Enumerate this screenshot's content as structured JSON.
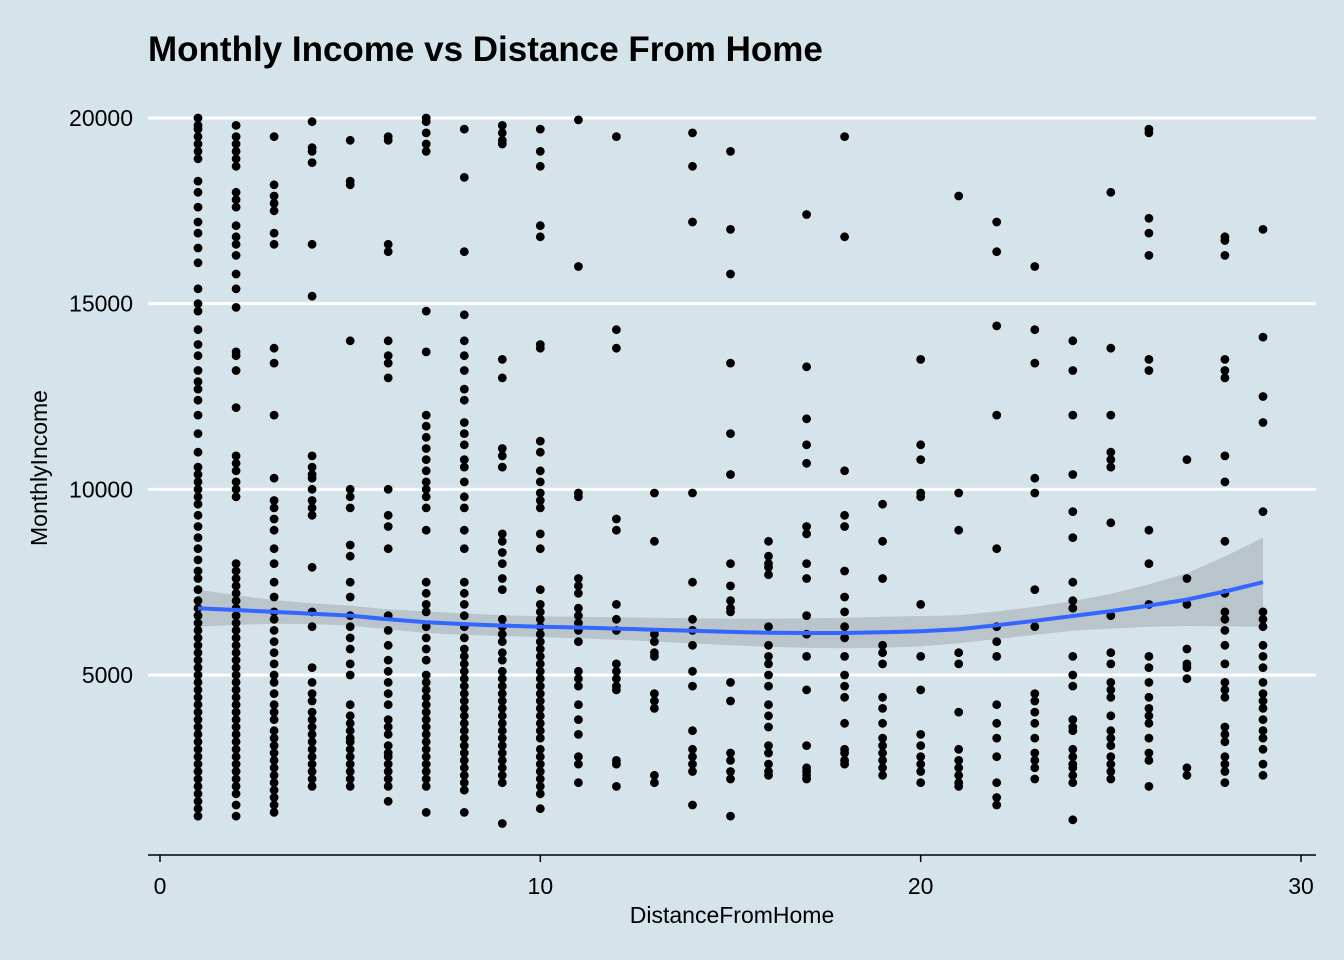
{
  "chart_data": {
    "type": "scatter",
    "title": "Monthly Income vs Distance From Home",
    "xlabel": "DistanceFromHome",
    "ylabel": "MonthlyIncome",
    "xlim": [
      -0.2,
      30.4
    ],
    "ylim": [
      1000,
      20000
    ],
    "x_ticks": [
      0,
      10,
      20,
      30
    ],
    "y_ticks": [
      5000,
      10000,
      15000,
      20000
    ],
    "grid": "horizontal major lines only",
    "colors": {
      "background": "#d5e4eb",
      "grid": "#ffffff",
      "points": "#000000",
      "smooth_line": "#3366ff",
      "confidence_band": "#b5bfc6"
    },
    "points": {
      "1": [
        19999,
        19800,
        19700,
        19500,
        19300,
        19100,
        18900,
        18300,
        18000,
        17600,
        17200,
        16900,
        16500,
        16100,
        15400,
        15000,
        14800,
        14300,
        13900,
        13600,
        13200,
        12900,
        12700,
        12400,
        12000,
        11500,
        11000,
        10600,
        10400,
        10200,
        10000,
        9800,
        9600,
        9300,
        9000,
        8700,
        8400,
        8100,
        7800,
        7600,
        7300,
        7000,
        6800,
        6600,
        6400,
        6200,
        6000,
        5800,
        5600,
        5400,
        5200,
        5000,
        4800,
        4600,
        4400,
        4200,
        4000,
        3800,
        3600,
        3400,
        3200,
        3000,
        2800,
        2600,
        2400,
        2200,
        2000,
        1800,
        1600,
        1400,
        1200
      ],
      "2": [
        19800,
        19500,
        19300,
        19100,
        18900,
        18700,
        18000,
        17800,
        17600,
        17100,
        16800,
        16600,
        16300,
        15800,
        15400,
        14900,
        13700,
        13600,
        13200,
        12200,
        10900,
        10700,
        10500,
        10200,
        10000,
        9800,
        8000,
        7800,
        7600,
        7400,
        7200,
        7000,
        6800,
        6600,
        6400,
        6200,
        6000,
        5800,
        5600,
        5400,
        5200,
        5000,
        4800,
        4600,
        4400,
        4200,
        4000,
        3800,
        3600,
        3400,
        3200,
        3000,
        2800,
        2600,
        2400,
        2200,
        2000,
        1800,
        1500,
        1200
      ],
      "3": [
        19500,
        18200,
        17900,
        17700,
        17500,
        16900,
        16600,
        13800,
        13400,
        12000,
        10300,
        9700,
        9500,
        9200,
        8900,
        8400,
        8000,
        7500,
        7100,
        6700,
        6500,
        6200,
        5900,
        5600,
        5300,
        5000,
        4800,
        4500,
        4200,
        4000,
        3800,
        3500,
        3300,
        3100,
        2900,
        2700,
        2500,
        2300,
        2100,
        1900,
        1700,
        1500,
        1300
      ],
      "4": [
        19900,
        19200,
        19100,
        18800,
        16600,
        15200,
        10900,
        10600,
        10400,
        10300,
        10000,
        9700,
        9500,
        9300,
        7900,
        6700,
        6300,
        5200,
        4800,
        4500,
        4300,
        4000,
        3800,
        3600,
        3400,
        3200,
        3000,
        2800,
        2600,
        2400,
        2200,
        2000
      ],
      "5": [
        19400,
        18300,
        18200,
        14000,
        10000,
        9800,
        9500,
        8500,
        8200,
        7500,
        7100,
        6600,
        6300,
        6000,
        5700,
        5300,
        5000,
        4200,
        3900,
        3700,
        3500,
        3300,
        3200,
        3000,
        2800,
        2600,
        2400,
        2200,
        2000
      ],
      "6": [
        19500,
        19400,
        16600,
        16400,
        14000,
        13600,
        13400,
        13000,
        10000,
        9300,
        9000,
        8400,
        6600,
        6200,
        5800,
        5400,
        5100,
        4800,
        4500,
        4200,
        3800,
        3600,
        3400,
        3100,
        2900,
        2800,
        2600,
        2400,
        2200,
        2000,
        1600
      ],
      "7": [
        19999,
        19900,
        19600,
        19300,
        19100,
        14800,
        13700,
        12000,
        11700,
        11400,
        11100,
        10800,
        10500,
        10200,
        10000,
        9800,
        9500,
        8900,
        7500,
        7200,
        6900,
        6700,
        6300,
        6000,
        5700,
        5400,
        5000,
        4800,
        4600,
        4400,
        4200,
        4000,
        3800,
        3600,
        3400,
        3200,
        3000,
        2800,
        2600,
        2400,
        2200,
        2000,
        1300
      ],
      "8": [
        19700,
        18400,
        16400,
        14700,
        14000,
        13600,
        13200,
        12700,
        12400,
        11800,
        11500,
        11200,
        10800,
        10600,
        10200,
        9800,
        9500,
        8900,
        8400,
        7500,
        7200,
        6900,
        6600,
        6300,
        6000,
        5700,
        5500,
        5300,
        5100,
        4900,
        4700,
        4500,
        4300,
        4100,
        3900,
        3700,
        3500,
        3300,
        3100,
        2900,
        2700,
        2500,
        2300,
        2100,
        1900,
        1300
      ],
      "9": [
        19800,
        19600,
        19400,
        19300,
        13500,
        13000,
        11100,
        10900,
        10600,
        8800,
        8600,
        8300,
        8000,
        7600,
        7300,
        6500,
        6300,
        6100,
        5900,
        5600,
        5400,
        5100,
        4900,
        4700,
        4500,
        4300,
        4100,
        3900,
        3700,
        3500,
        3300,
        3100,
        2900,
        2700,
        2500,
        2300,
        2100,
        1000
      ],
      "10": [
        19700,
        19100,
        18700,
        17100,
        16800,
        13900,
        13800,
        11300,
        11000,
        10500,
        10200,
        9900,
        9700,
        9500,
        8800,
        8400,
        7300,
        6900,
        6700,
        6500,
        6300,
        6100,
        5900,
        5700,
        5500,
        5300,
        5100,
        4900,
        4700,
        4500,
        4300,
        4100,
        3900,
        3700,
        3500,
        3300,
        3000,
        2800,
        2600,
        2400,
        2200,
        2000,
        1800,
        1400
      ],
      "11": [
        19950,
        16000,
        9900,
        9800,
        7600,
        7400,
        7200,
        6800,
        6600,
        6400,
        6200,
        5900,
        5100,
        4900,
        4700,
        4200,
        3800,
        3400,
        2800,
        2600,
        2100
      ],
      "12": [
        19500,
        14300,
        13800,
        9200,
        8900,
        6900,
        6500,
        6200,
        5300,
        5100,
        4900,
        4700,
        4600,
        2700,
        2600,
        2000
      ],
      "13": [
        9900,
        8600,
        6100,
        5900,
        5600,
        5500,
        4500,
        4300,
        4100,
        2300,
        2100
      ],
      "14": [
        19600,
        18700,
        17200,
        9900,
        7500,
        6500,
        6200,
        5800,
        5100,
        4700,
        3500,
        3000,
        2800,
        2600,
        2400,
        1500
      ],
      "15": [
        19100,
        17000,
        15800,
        13400,
        11500,
        10400,
        8000,
        7400,
        7000,
        6800,
        6700,
        4800,
        4300,
        2900,
        2700,
        2400,
        2200,
        1200
      ],
      "16": [
        8600,
        8200,
        8000,
        7900,
        7700,
        6300,
        5800,
        5500,
        5300,
        5000,
        4700,
        4200,
        3900,
        3600,
        3100,
        2900,
        2600,
        2400,
        2300
      ],
      "17": [
        17400,
        13300,
        11900,
        11200,
        10700,
        9000,
        8800,
        8000,
        7600,
        6600,
        6100,
        5500,
        4600,
        3100,
        2500,
        2400,
        2300,
        2200
      ],
      "18": [
        19500,
        16800,
        10500,
        9300,
        9000,
        7800,
        7100,
        6700,
        6300,
        6000,
        5500,
        5000,
        4700,
        4400,
        3700,
        3000,
        2900,
        2700,
        2600
      ],
      "19": [
        9600,
        8600,
        7600,
        5800,
        5600,
        5300,
        4400,
        4100,
        3700,
        3300,
        3100,
        2900,
        2700,
        2500,
        2300
      ],
      "20": [
        13500,
        11200,
        10800,
        9900,
        9800,
        6900,
        5500,
        4600,
        3400,
        3100,
        2800,
        2600,
        2400,
        2100
      ],
      "21": [
        17900,
        9900,
        8900,
        5600,
        5300,
        4000,
        3000,
        2700,
        2500,
        2300,
        2100,
        2000
      ],
      "22": [
        17200,
        16400,
        14400,
        12000,
        8400,
        6300,
        5900,
        5500,
        4200,
        3700,
        3300,
        2800,
        2100,
        1700,
        1500
      ],
      "23": [
        16000,
        14300,
        13400,
        10300,
        9900,
        7300,
        6300,
        4500,
        4300,
        4000,
        3700,
        3300,
        2900,
        2700,
        2500,
        2200
      ],
      "24": [
        14000,
        13200,
        12000,
        10400,
        9400,
        8700,
        7500,
        7000,
        6800,
        5500,
        5000,
        4700,
        3800,
        3600,
        3500,
        3000,
        2800,
        2600,
        2500,
        2300,
        2100,
        1100
      ],
      "25": [
        18000,
        13800,
        12000,
        11000,
        10800,
        10600,
        9100,
        6600,
        5600,
        5300,
        4800,
        4600,
        4400,
        3900,
        3500,
        3300,
        3100,
        2800,
        2600,
        2400,
        2200
      ],
      "26": [
        19700,
        19600,
        17300,
        16900,
        16300,
        13500,
        13200,
        8900,
        8000,
        6900,
        5500,
        5200,
        4800,
        4400,
        4100,
        3900,
        3700,
        3300,
        2900,
        2700,
        2000
      ],
      "27": [
        10800,
        7600,
        6900,
        5700,
        5300,
        5200,
        4900,
        2500,
        2300
      ],
      "28": [
        16800,
        16700,
        16300,
        13500,
        13200,
        13000,
        10900,
        10200,
        8600,
        7200,
        6700,
        6500,
        6200,
        5800,
        5300,
        4800,
        4600,
        4400,
        3600,
        3400,
        3200,
        2800,
        2600,
        2400,
        2100
      ],
      "29": [
        17000,
        14100,
        12500,
        11800,
        9400,
        6700,
        6500,
        6300,
        5800,
        5500,
        5200,
        4800,
        4500,
        4300,
        4100,
        3800,
        3500,
        3300,
        3000,
        2600,
        2300
      ]
    },
    "smooth": {
      "x": [
        1,
        2,
        3,
        4,
        5,
        6,
        7,
        8,
        9,
        10,
        11,
        12,
        13,
        14,
        15,
        16,
        17,
        18,
        19,
        20,
        21,
        22,
        23,
        24,
        25,
        26,
        27,
        28,
        29
      ],
      "y": [
        6800,
        6750,
        6700,
        6650,
        6600,
        6500,
        6420,
        6370,
        6330,
        6300,
        6280,
        6250,
        6220,
        6190,
        6160,
        6140,
        6130,
        6130,
        6150,
        6180,
        6230,
        6340,
        6460,
        6590,
        6720,
        6870,
        7030,
        7250,
        7500
      ],
      "lower": [
        6300,
        6350,
        6380,
        6370,
        6330,
        6230,
        6130,
        6080,
        6050,
        6020,
        5990,
        5950,
        5900,
        5850,
        5800,
        5760,
        5730,
        5720,
        5730,
        5770,
        5850,
        5970,
        6080,
        6190,
        6250,
        6300,
        6320,
        6310,
        6300
      ],
      "upper": [
        7300,
        7150,
        7020,
        6930,
        6870,
        6770,
        6710,
        6660,
        6610,
        6580,
        6570,
        6550,
        6540,
        6530,
        6520,
        6520,
        6530,
        6540,
        6570,
        6590,
        6610,
        6710,
        6840,
        6990,
        7190,
        7440,
        7740,
        8190,
        8700
      ]
    }
  }
}
